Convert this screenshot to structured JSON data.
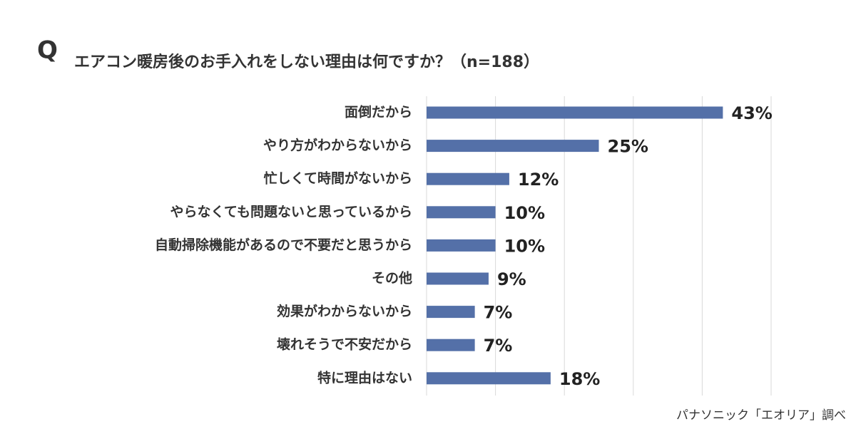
{
  "chart_data": {
    "type": "bar",
    "orientation": "horizontal",
    "question_label": "Q",
    "title": "エアコン暖房後のお手入れをしない理由は何ですか？（n=188）",
    "source": "パナソニック「エオリア」調べ",
    "categories": [
      "面倒だから",
      "やり方がわからないから",
      "忙しくて時間がないから",
      "やらなくても問題ないと思っているから",
      "自動掃除機能があるので不要だと思うから",
      "その他",
      "効果がわからないから",
      "壊れそうで不安だから",
      "特に理由はない"
    ],
    "values": [
      43,
      25,
      12,
      10,
      10,
      9,
      7,
      7,
      18
    ],
    "value_labels": [
      "43%",
      "25%",
      "12%",
      "10%",
      "10%",
      "9%",
      "7%",
      "7%",
      "18%"
    ],
    "color": "#5470a8",
    "xlim": [
      0,
      50
    ],
    "xticks": [
      0,
      10,
      20,
      30,
      40,
      50
    ],
    "grid": true
  }
}
